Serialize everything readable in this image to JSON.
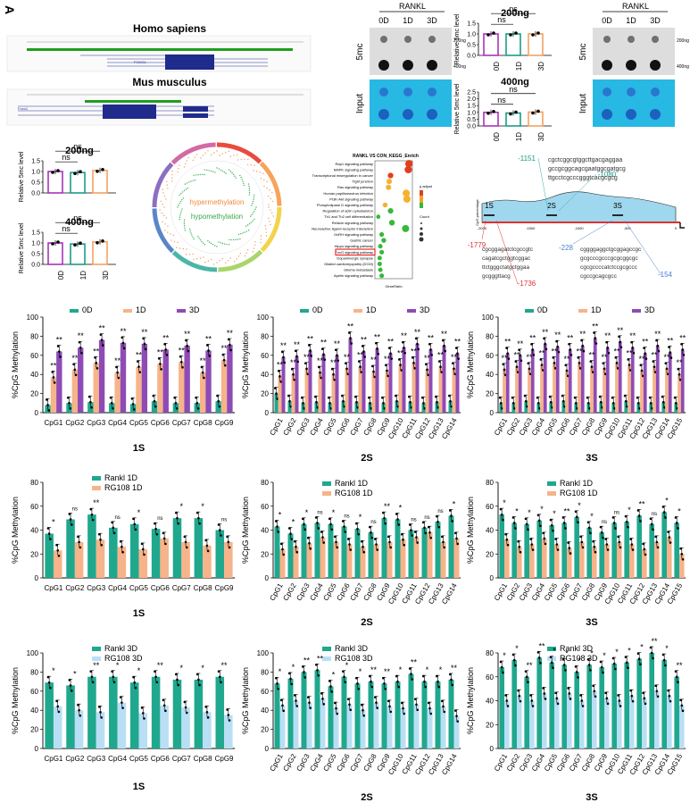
{
  "figure_letter": "A",
  "genome": {
    "human_title": "Homo sapiens",
    "mouse_title": "Mus musculus",
    "human_gene": "FOXO1",
    "mouse_gene": "Foxo1"
  },
  "dotblot": {
    "rankl_label": "RANKL",
    "lanes": [
      "0D",
      "1D",
      "3D"
    ],
    "row_5mc": "5mc",
    "row_input": "Input",
    "mass_200": "200ng",
    "mass_400": "400ng"
  },
  "small_bars": {
    "ylabel": "Relative 5mc level",
    "categories": [
      "0D",
      "1D",
      "3D"
    ],
    "ns": "ns",
    "panels": [
      {
        "title": "200ng",
        "values": [
          1.0,
          1.0,
          1.0
        ],
        "ylim": [
          0,
          1.5
        ],
        "ticks": [
          "0.0",
          "0.5",
          "1.0",
          "1.5"
        ]
      },
      {
        "title": "400ng",
        "values": [
          1.0,
          0.95,
          1.02
        ],
        "ylim": [
          0,
          2.5
        ],
        "ticks": [
          "0.0",
          "0.5",
          "1.0",
          "1.5",
          "2.0",
          "2.5"
        ]
      },
      {
        "title": "200ng",
        "values": [
          1.0,
          0.95,
          1.05
        ],
        "ylim": [
          0,
          1.5
        ],
        "ticks": [
          "0.0",
          "0.5",
          "1.0",
          "1.5"
        ]
      },
      {
        "title": "400ng",
        "values": [
          1.0,
          0.95,
          1.05
        ],
        "ylim": [
          0,
          1.5
        ],
        "ticks": [
          "0.0",
          "0.5",
          "1.0",
          "1.5"
        ]
      }
    ],
    "colors": [
      "#a833b9",
      "#1a9c86",
      "#f4a263"
    ]
  },
  "circos": {
    "hyper": "hypermethylation",
    "hypo": "hypomethylation"
  },
  "kegg": {
    "title": "RANKL VS CON_KEGG_Enrich",
    "xlabel": "GeneRatio",
    "pathways": [
      "Rap1 signaling pathway",
      "MAPK signaling pathway",
      "Transcriptional misregulation in cancer",
      "Tight junction",
      "Ras signaling pathway",
      "Human papillomavirus infection",
      "PI3K-Akt signaling pathway",
      "Phospholipase D signaling pathway",
      "Regulation of actin cytoskeleton",
      "Th1 and Th2 cell differentiation",
      "Relaxin signaling pathway",
      "Neuroactive ligand-receptor interaction",
      "GnRH signaling pathway",
      "Gastric cancer",
      "Hippo signaling pathway",
      "FoxO signaling pathway",
      "Dopaminergic synapse",
      "Dilated cardiomyopathy (DCM)",
      "Glioma metastasis",
      "Apelin signaling pathway"
    ],
    "ratios": [
      0.065,
      0.064,
      0.038,
      0.036,
      0.035,
      0.061,
      0.062,
      0.03,
      0.038,
      0.02,
      0.04,
      0.06,
      0.025,
      0.028,
      0.023,
      0.025,
      0.022,
      0.022,
      0.023,
      0.025
    ],
    "legend_padj": "p.adjust",
    "legend_count": "Count",
    "highlight": "FoxO signaling pathway"
  },
  "cpg_map": {
    "ylabel": "CpG percentage",
    "ticks": [
      "-2000",
      "-1500",
      "-1000",
      "-500",
      "0"
    ],
    "regions": [
      "1S",
      "2S",
      "3S"
    ],
    "positions": [
      "-1151",
      "-1080",
      "-1779",
      "-1736",
      "-228",
      "-154"
    ],
    "seq_mid": [
      "cgctcggcgtggcttgacgaggaa",
      "gccgcggcagcgaatggcgatgcg",
      "ttgcctcgcccgggtcacgcgcg"
    ],
    "seq_left": [
      "cgcggagatctcgccgtc",
      "cagatcgctggtcggac",
      "ttctgggctatgctggaa",
      "gcgggttacg"
    ],
    "seq_right": [
      "cggggaggctgcggagccgc",
      "gcgcccgcccgcgcggcgc",
      "cgcgccccatctccgcgccc",
      "cgccgcagcgcc"
    ]
  },
  "group_legend": {
    "g0": "0D",
    "g1": "1D",
    "g3": "3D"
  },
  "rankl_legend": {
    "rankl1": "Rankl 1D",
    "rg1": "RG108 1D",
    "rankl3": "Rankl 3D",
    "rg3": "RG108 3D"
  },
  "panel_ylabel": "%CpG Methylation",
  "sig": {
    "two": "**",
    "one": "*",
    "ns": "ns"
  },
  "chart_data": [
    {
      "type": "bar",
      "xlabel": "1S",
      "ylabel": "%CpG Methylation",
      "ylim": [
        0,
        100
      ],
      "categories": [
        "CpG1",
        "CpG2",
        "CpG3",
        "CpG4",
        "CpG5",
        "CpG6",
        "CpG7",
        "CpG8",
        "CpG9"
      ],
      "series": [
        {
          "name": "0D",
          "values": [
            8,
            10,
            11,
            10,
            9,
            12,
            10,
            10,
            12
          ]
        },
        {
          "name": "1D",
          "values": [
            37,
            45,
            52,
            42,
            48,
            51,
            53,
            42,
            55
          ]
        },
        {
          "name": "3D",
          "values": [
            64,
            68,
            76,
            73,
            72,
            66,
            70,
            65,
            71
          ]
        }
      ],
      "sig": [
        [
          "**",
          "**",
          "**",
          "**",
          "**",
          "**",
          "**",
          "**",
          "**"
        ],
        [
          "**",
          "**",
          "**",
          "**",
          "**",
          "**",
          "**",
          "**",
          "**"
        ]
      ]
    },
    {
      "type": "bar",
      "xlabel": "2S",
      "ylabel": "%CpG Methylation",
      "ylim": [
        0,
        100
      ],
      "categories": [
        "CpG1",
        "CpG2",
        "CpG3",
        "CpG4",
        "CpG5",
        "CpG6",
        "CpG7",
        "CpG8",
        "CpG9",
        "CpG10",
        "CpG11",
        "CpG12",
        "CpG13",
        "CpG14"
      ],
      "series": [
        {
          "name": "0D",
          "values": [
            20,
            12,
            10,
            11,
            10,
            12,
            11,
            10,
            10,
            12,
            11,
            10,
            11,
            12
          ]
        },
        {
          "name": "1D",
          "values": [
            38,
            40,
            46,
            42,
            40,
            46,
            48,
            43,
            44,
            50,
            52,
            45,
            48,
            46
          ]
        },
        {
          "name": "3D",
          "values": [
            58,
            59,
            65,
            61,
            60,
            78,
            64,
            67,
            62,
            68,
            72,
            66,
            70,
            62
          ]
        }
      ],
      "sig": [
        [
          "**",
          "**",
          "**",
          "**",
          "**",
          "**",
          "**",
          "**",
          "**",
          "**",
          "**",
          "**",
          "**",
          "**"
        ],
        [
          "**",
          "**",
          "**",
          "**",
          "**",
          "**",
          "**",
          "**",
          "**",
          "**",
          "**",
          "**",
          "**",
          "**"
        ]
      ]
    },
    {
      "type": "bar",
      "xlabel": "3S",
      "ylabel": "%CpG Methylation",
      "ylim": [
        0,
        100
      ],
      "categories": [
        "CpG1",
        "CpG2",
        "CpG3",
        "CpG4",
        "CpG5",
        "CpG6",
        "CpG7",
        "CpG8",
        "CpG9",
        "CpG10",
        "CpG11",
        "CpG12",
        "CpG13",
        "CpG14",
        "CpG15"
      ],
      "series": [
        {
          "name": "0D",
          "values": [
            10,
            10,
            12,
            10,
            11,
            12,
            10,
            10,
            11,
            10,
            12,
            10,
            10,
            11,
            10
          ]
        },
        {
          "name": "1D",
          "values": [
            45,
            48,
            46,
            50,
            52,
            44,
            52,
            48,
            46,
            52,
            50,
            44,
            48,
            46,
            40
          ]
        },
        {
          "name": "3D",
          "values": [
            62,
            60,
            66,
            72,
            69,
            66,
            70,
            78,
            68,
            74,
            68,
            62,
            70,
            63,
            66
          ]
        }
      ],
      "sig": [
        [
          "**",
          "**",
          "**",
          "**",
          "**",
          "**",
          "**",
          "**",
          "**",
          "**",
          "**",
          "**",
          "**",
          "**",
          "**"
        ],
        [
          "**",
          "**",
          "**",
          "**",
          "**",
          "**",
          "**",
          "**",
          "**",
          "**",
          "**",
          "**",
          "**",
          "**",
          "**"
        ]
      ]
    },
    {
      "type": "bar",
      "xlabel": "1S",
      "ylabel": "%CpG Methylation",
      "ylim": [
        0,
        80
      ],
      "yticks": [
        0,
        20,
        40,
        60,
        80
      ],
      "categories": [
        "CpG1",
        "CpG2",
        "CpG3",
        "CpG4",
        "CpG5",
        "CpG6",
        "CpG7",
        "CpG8",
        "CpG9"
      ],
      "series": [
        {
          "name": "Rankl 1D",
          "values": [
            37,
            49,
            53,
            42,
            45,
            41,
            50,
            50,
            40
          ]
        },
        {
          "name": "RG108 1D",
          "values": [
            23,
            30,
            32,
            26,
            24,
            33,
            30,
            27,
            30
          ]
        }
      ],
      "sig": [
        [
          "*",
          "ns",
          "**",
          "ns",
          "*",
          "ns",
          "*",
          "*",
          "ns"
        ]
      ]
    },
    {
      "type": "bar",
      "xlabel": "2S",
      "ylabel": "%CpG Methylation",
      "ylim": [
        0,
        80
      ],
      "yticks": [
        0,
        20,
        40,
        60,
        80
      ],
      "categories": [
        "CpG1",
        "CpG2",
        "CpG3",
        "CpG4",
        "CpG5",
        "CpG6",
        "CpG7",
        "CpG8",
        "CpG9",
        "CpG10",
        "CpG11",
        "CpG12",
        "CpG13",
        "CpG14"
      ],
      "series": [
        {
          "name": "Rankl 1D",
          "values": [
            43,
            37,
            45,
            46,
            45,
            43,
            41,
            38,
            50,
            49,
            40,
            42,
            47,
            52
          ]
        },
        {
          "name": "RG108 1D",
          "values": [
            24,
            26,
            29,
            34,
            30,
            28,
            26,
            28,
            30,
            32,
            34,
            38,
            30,
            33
          ]
        }
      ],
      "sig": [
        [
          "*",
          "*",
          "*",
          "ns",
          "*",
          "ns",
          "*",
          "ns",
          "**",
          "*",
          "ns",
          "ns",
          "ns",
          "*"
        ]
      ]
    },
    {
      "type": "bar",
      "xlabel": "3S",
      "ylabel": "%CpG Methylation",
      "ylim": [
        0,
        80
      ],
      "yticks": [
        0,
        20,
        40,
        60,
        80
      ],
      "categories": [
        "CpG1",
        "CpG2",
        "CpG3",
        "CpG4",
        "CpG5",
        "CpG6",
        "CpG7",
        "CpG8",
        "CpG9",
        "CpG10",
        "CpG11",
        "CpG12",
        "CpG13",
        "CpG14",
        "CpG15"
      ],
      "series": [
        {
          "name": "Rankl 1D",
          "values": [
            53,
            46,
            45,
            48,
            44,
            46,
            51,
            42,
            38,
            46,
            47,
            52,
            45,
            55,
            46
          ]
        },
        {
          "name": "RG108 1D",
          "values": [
            32,
            26,
            28,
            33,
            28,
            25,
            30,
            26,
            28,
            30,
            28,
            24,
            30,
            34,
            20
          ]
        }
      ],
      "sig": [
        [
          "*",
          "*",
          "*",
          "*",
          "*",
          "**",
          "*",
          "*",
          "ns",
          "ns",
          "*",
          "**",
          "ns",
          "*",
          "*"
        ]
      ]
    },
    {
      "type": "bar",
      "xlabel": "1S",
      "ylabel": "%CpG Methylation",
      "ylim": [
        0,
        100
      ],
      "categories": [
        "CpG1",
        "CpG2",
        "CpG3",
        "CpG4",
        "CpG5",
        "CpG6",
        "CpG7",
        "CpG8",
        "CpG9"
      ],
      "series": [
        {
          "name": "Rankl 3D",
          "values": [
            69,
            66,
            75,
            75,
            69,
            75,
            72,
            72,
            75
          ]
        },
        {
          "name": "RG108 3D",
          "values": [
            44,
            40,
            38,
            48,
            37,
            45,
            43,
            38,
            35
          ]
        }
      ],
      "sig": [
        [
          "*",
          "*",
          "**",
          "*",
          "*",
          "**",
          "*",
          "*",
          "**"
        ]
      ]
    },
    {
      "type": "bar",
      "xlabel": "2S",
      "ylabel": "%CpG Methylation",
      "ylim": [
        0,
        100
      ],
      "categories": [
        "CpG1",
        "CpG2",
        "CpG3",
        "CpG4",
        "CpG5",
        "CpG6",
        "CpG7",
        "CpG8",
        "CpG9",
        "CpG10",
        "CpG11",
        "CpG12",
        "CpG13",
        "CpG14"
      ],
      "series": [
        {
          "name": "Rankl 3D",
          "values": [
            68,
            73,
            80,
            82,
            65,
            75,
            68,
            70,
            68,
            70,
            78,
            70,
            70,
            72
          ]
        },
        {
          "name": "RG108 3D",
          "values": [
            45,
            50,
            48,
            52,
            42,
            46,
            40,
            48,
            44,
            42,
            46,
            42,
            44,
            34
          ]
        }
      ],
      "sig": [
        [
          "*",
          "*",
          "**",
          "**",
          "*",
          "*",
          "*",
          "**",
          "**",
          "*",
          "**",
          "*",
          "*",
          "**"
        ]
      ]
    },
    {
      "type": "bar",
      "xlabel": "3S",
      "ylabel": "%CpG Methylation",
      "ylim": [
        0,
        80
      ],
      "yticks": [
        0,
        20,
        40,
        60,
        80
      ],
      "categories": [
        "CpG1",
        "CpG2",
        "CpG3",
        "CpG4",
        "CpG5",
        "CpG6",
        "CpG7",
        "CpG8",
        "CpG9",
        "CpG10",
        "CpG11",
        "CpG12",
        "CpG13",
        "CpG14",
        "CpG15"
      ],
      "series": [
        {
          "name": "Rankl 3D",
          "values": [
            68,
            74,
            60,
            76,
            72,
            70,
            64,
            70,
            68,
            71,
            72,
            75,
            80,
            74,
            60
          ]
        },
        {
          "name": "RG108 3D",
          "values": [
            40,
            44,
            40,
            46,
            42,
            46,
            40,
            48,
            42,
            40,
            44,
            42,
            48,
            44,
            36
          ]
        }
      ],
      "sig": [
        [
          "*",
          "*",
          "**",
          "**",
          "*",
          "*",
          "*",
          "*",
          "*",
          "*",
          "*",
          "*",
          "**",
          "*",
          "**"
        ]
      ]
    }
  ]
}
